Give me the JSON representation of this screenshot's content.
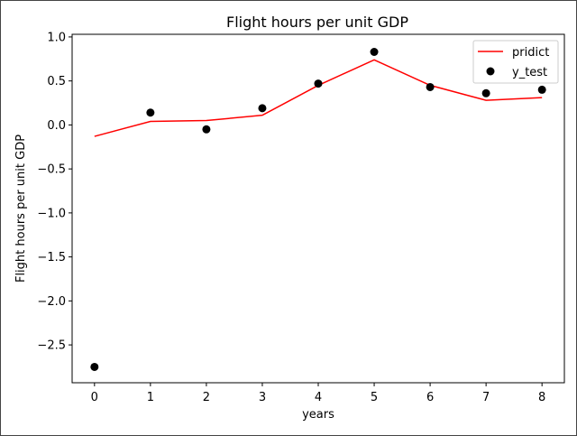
{
  "chart_data": {
    "type": "line",
    "title": "Flight hours per unit GDP",
    "xlabel": "years",
    "ylabel": "Flight hours per unit GDP",
    "xlim": [
      -0.4,
      8.4
    ],
    "ylim": [
      -2.93,
      1.03
    ],
    "x_ticks": [
      0,
      1,
      2,
      3,
      4,
      5,
      6,
      7,
      8
    ],
    "x_tick_labels": [
      "0",
      "1",
      "2",
      "3",
      "4",
      "5",
      "6",
      "7",
      "8"
    ],
    "y_ticks": [
      1.0,
      0.5,
      0.0,
      -0.5,
      -1.0,
      -1.5,
      -2.0,
      -2.5
    ],
    "y_tick_labels": [
      "1.0",
      "0.5",
      "0.0",
      "−0.5",
      "−1.0",
      "−1.5",
      "−2.0",
      "−2.5"
    ],
    "grid": false,
    "legend_position": "upper-right",
    "series": [
      {
        "name": "pridict",
        "kind": "line",
        "color": "#ff0000",
        "x": [
          0,
          1,
          2,
          3,
          4,
          5,
          6,
          7,
          8
        ],
        "y": [
          -0.13,
          0.04,
          0.05,
          0.11,
          0.45,
          0.74,
          0.45,
          0.28,
          0.31
        ]
      },
      {
        "name": "y_test",
        "kind": "scatter",
        "color": "#000000",
        "x": [
          0,
          1,
          2,
          3,
          4,
          5,
          6,
          7,
          8
        ],
        "y": [
          -2.75,
          0.14,
          -0.05,
          0.19,
          0.47,
          0.83,
          0.43,
          0.36,
          0.4
        ]
      }
    ]
  }
}
